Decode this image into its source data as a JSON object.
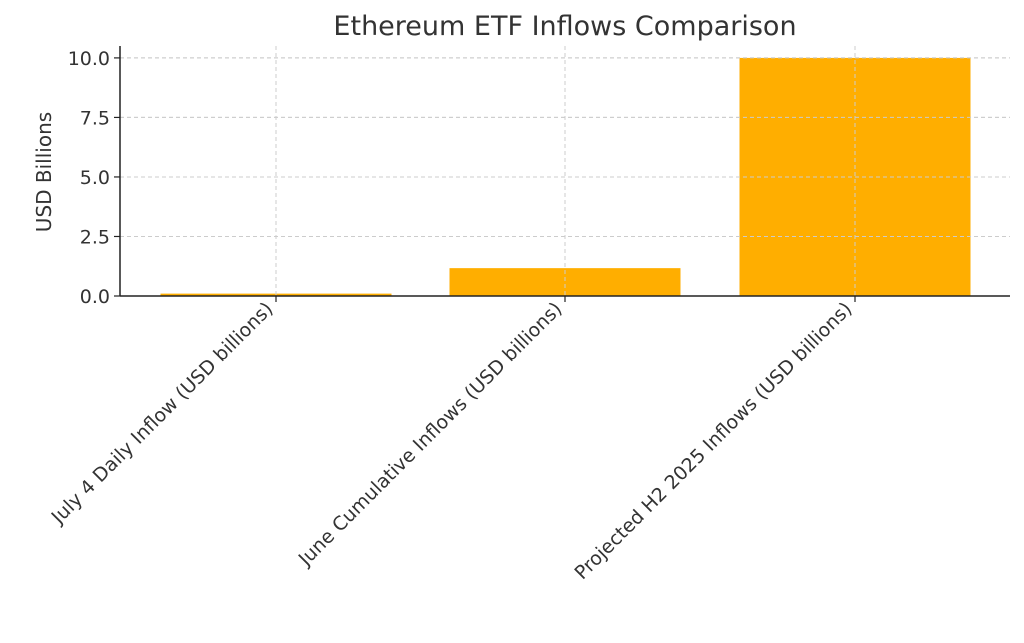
{
  "chart_data": {
    "type": "bar",
    "title": "Ethereum ETF Inflows Comparison",
    "xlabel": "",
    "ylabel": "USD Billions",
    "categories": [
      "July 4 Daily Inflow (USD billions)",
      "June Cumulative Inflows (USD billions)",
      "Projected H2 2025 Inflows (USD billions)"
    ],
    "values": [
      0.1,
      1.17,
      10.0
    ],
    "ylim": [
      0,
      10.5
    ],
    "yticks": [
      0.0,
      2.5,
      5.0,
      7.5,
      10.0
    ],
    "ytick_labels": [
      "0.0",
      "2.5",
      "5.0",
      "7.5",
      "10.0"
    ],
    "bar_color": "#FFAE00",
    "grid": true
  }
}
